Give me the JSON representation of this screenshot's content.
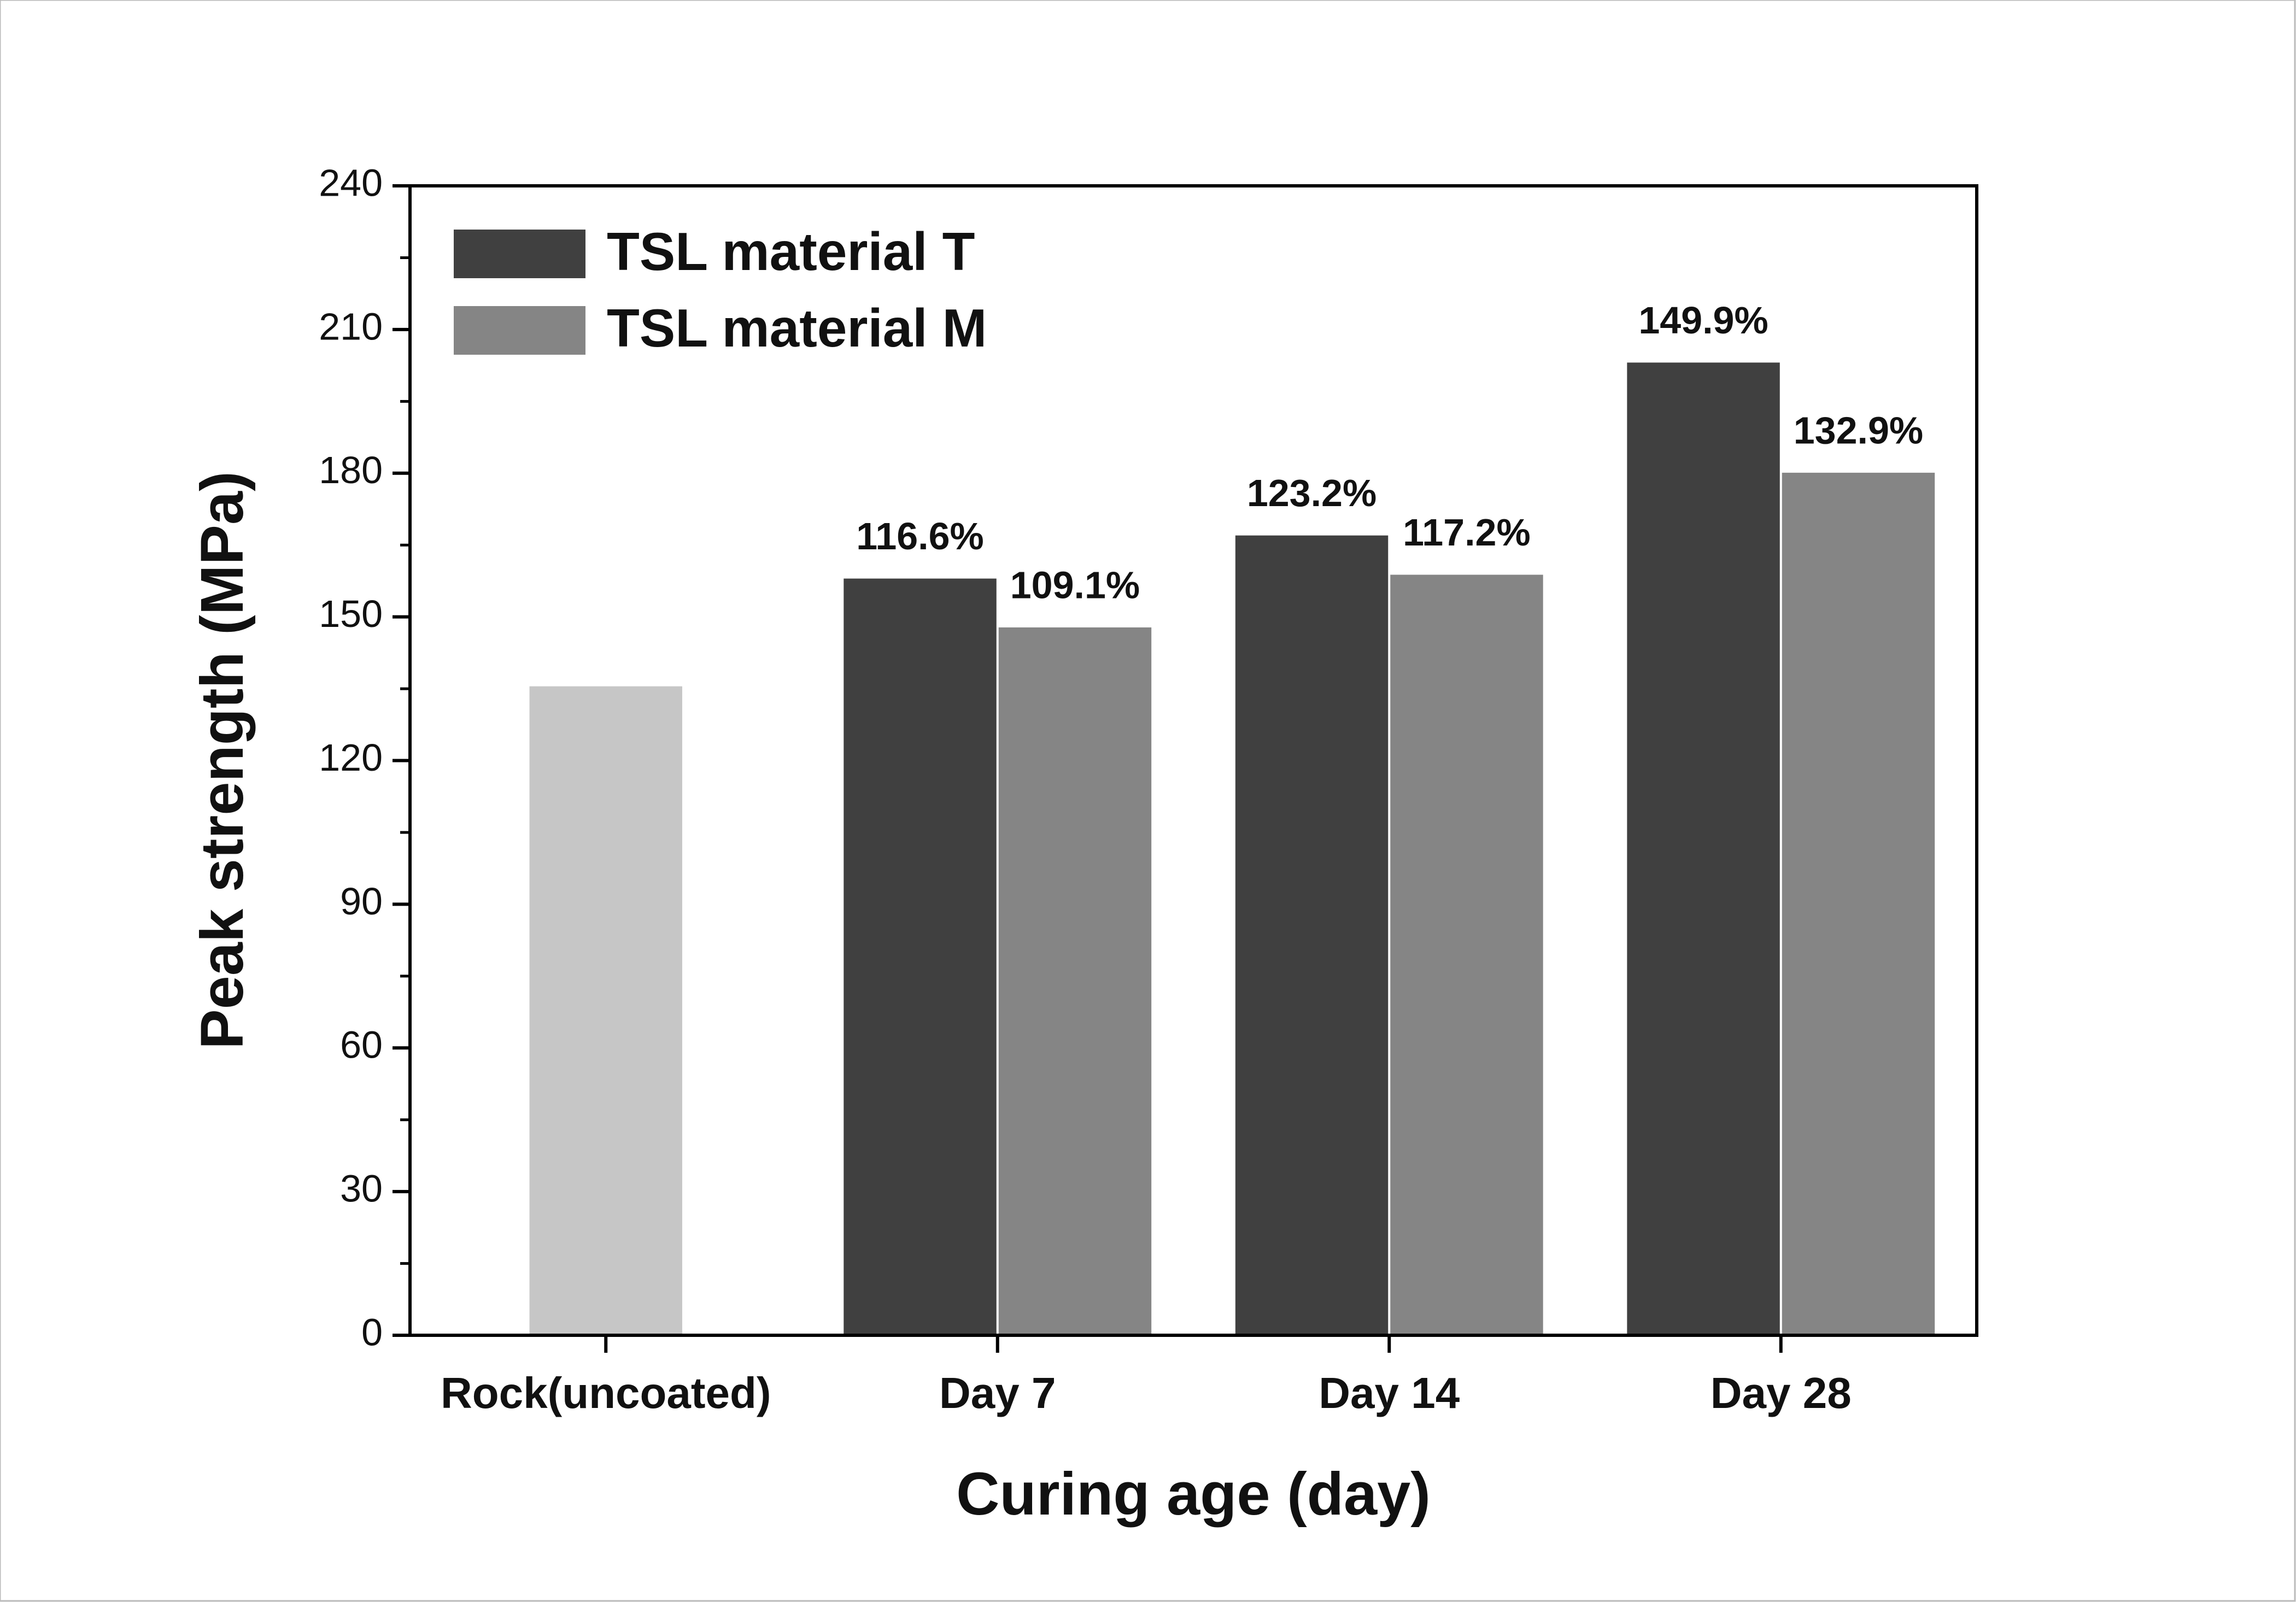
{
  "chart_data": {
    "type": "bar",
    "x_label": "Curing age (day)",
    "y_label": "Peak strength (MPa)",
    "categories": [
      "Rock(uncoated)",
      "Day 7",
      "Day 14",
      "Day 28"
    ],
    "reference": {
      "color": "#c6c6c6",
      "values": [
        135.5,
        null,
        null,
        null
      ]
    },
    "series": [
      {
        "name": "TSL material T",
        "color": "#404040",
        "values": [
          null,
          158,
          167,
          203.1
        ],
        "annotations": [
          null,
          "116.6%",
          "123.2%",
          "149.9%"
        ]
      },
      {
        "name": "TSL material M",
        "color": "#858585",
        "values": [
          null,
          147.8,
          158.8,
          180.1
        ],
        "annotations": [
          null,
          "109.1%",
          "117.2%",
          "132.9%"
        ]
      }
    ],
    "ylim": [
      0,
      240
    ],
    "yticks": [
      0,
      30,
      60,
      90,
      120,
      150,
      180,
      210,
      240
    ],
    "legend": "upper left"
  }
}
